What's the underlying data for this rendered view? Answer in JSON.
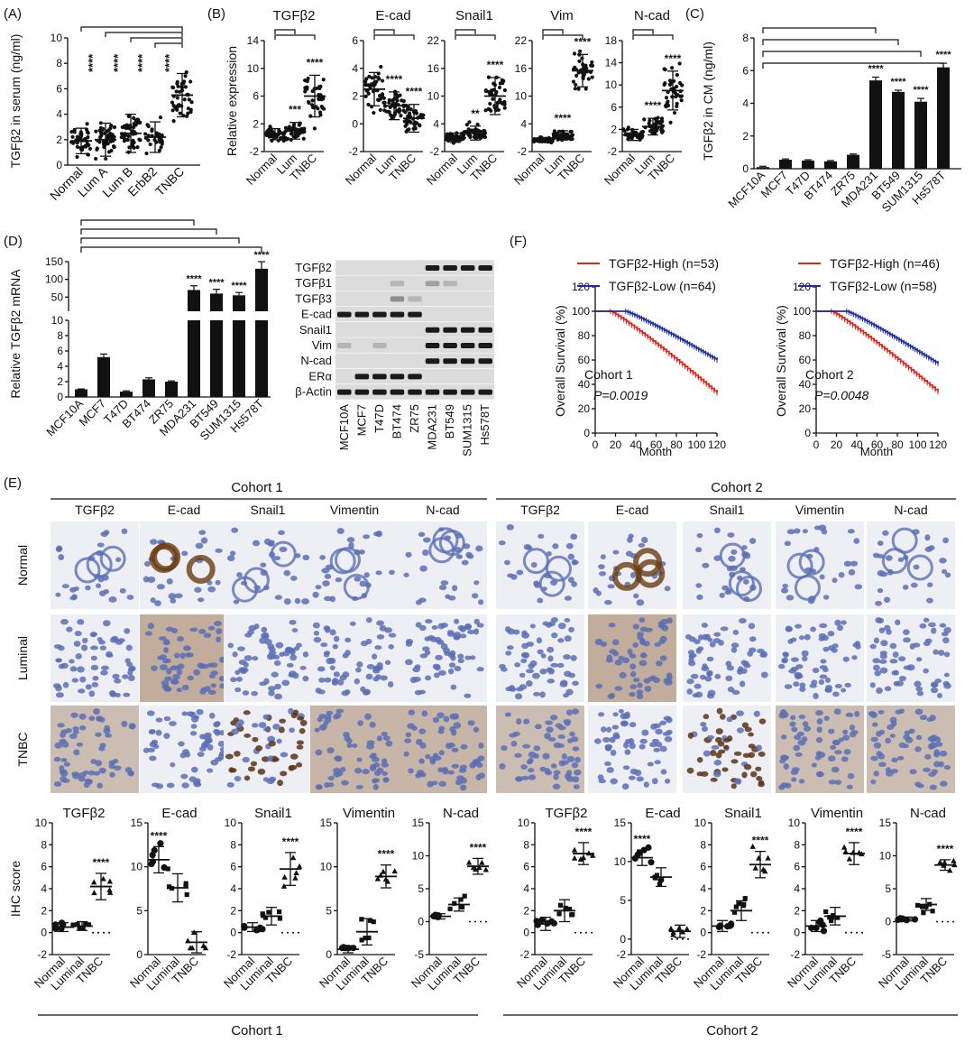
{
  "colors": {
    "axis": "#111111",
    "bar": "#111111",
    "km_high": "#e2231a",
    "km_low": "#1f2d9e",
    "ihc_brown": "#8a5a2b",
    "ihc_blue": "#5b6fb5",
    "ihc_bg": "#eeeef5",
    "blot_bg": "#dcdcdc",
    "blot_band": "#1a1a1a"
  },
  "panels": {
    "A": "(A)",
    "B": "(B)",
    "C": "(C)",
    "D": "(D)",
    "E": "(E)",
    "F": "(F)"
  },
  "common": {
    "sig4": "****",
    "sig3": "***",
    "sig2": "**"
  },
  "chart_data": [
    {
      "id": "A",
      "type": "scatter",
      "ylabel": "TGFβ2 in serum (ng/ml)",
      "ylim": [
        0,
        10
      ],
      "yticks": [
        0,
        2,
        4,
        6,
        8,
        10
      ],
      "categories": [
        "Normal",
        "Lum A",
        "Lum B",
        "ErbB2",
        "TNBC"
      ],
      "mean": [
        1.9,
        2.0,
        2.5,
        2.2,
        5.5
      ],
      "sd": [
        1.0,
        1.3,
        1.5,
        1.2,
        1.7
      ],
      "n": [
        40,
        45,
        50,
        30,
        45
      ],
      "sig": [
        "",
        "****",
        "****",
        "****",
        "****"
      ]
    },
    {
      "id": "B",
      "type": "scatter",
      "ylabel": "Relative expression",
      "categories": [
        "Normal",
        "Lum",
        "TNBC"
      ],
      "subplots": [
        {
          "title": "TGFβ2",
          "ylim": [
            -2,
            14
          ],
          "yticks": [
            -2,
            2,
            6,
            10,
            14
          ],
          "mean": [
            0.5,
            1.0,
            6.0
          ],
          "sd": [
            0.8,
            1.2,
            3.0
          ],
          "sig": [
            "",
            "***",
            "****"
          ]
        },
        {
          "title": "E-cad",
          "ylim": [
            -2,
            6
          ],
          "yticks": [
            -2,
            0,
            2,
            4,
            6
          ],
          "mean": [
            2.5,
            1.3,
            0.4
          ],
          "sd": [
            1.2,
            1.0,
            1.0
          ],
          "sig": [
            "",
            "****",
            "****"
          ]
        },
        {
          "title": "Snail1",
          "ylim": [
            -2,
            22
          ],
          "yticks": [
            -2,
            4,
            10,
            16,
            22
          ],
          "mean": [
            1.0,
            2.0,
            10.0
          ],
          "sd": [
            1.0,
            1.5,
            4.0
          ],
          "sig": [
            "",
            "**",
            "****"
          ]
        },
        {
          "title": "Vim",
          "ylim": [
            -2,
            22
          ],
          "yticks": [
            -2,
            4,
            10,
            16,
            22
          ],
          "mean": [
            0.5,
            1.5,
            15.5
          ],
          "sd": [
            0.5,
            1.0,
            3.5
          ],
          "sig": [
            "",
            "****",
            "****"
          ]
        },
        {
          "title": "N-cad",
          "ylim": [
            -2,
            18
          ],
          "yticks": [
            -2,
            2,
            6,
            10,
            14,
            18
          ],
          "mean": [
            1.0,
            2.5,
            9.0
          ],
          "sd": [
            1.0,
            1.5,
            3.5
          ],
          "sig": [
            "",
            "****",
            "****"
          ]
        }
      ]
    },
    {
      "id": "C",
      "type": "bar",
      "ylabel": "TGFβ2 in CM (ng/ml)",
      "ylim": [
        0,
        8
      ],
      "yticks": [
        0,
        2,
        4,
        6,
        8
      ],
      "categories": [
        "MCF10A",
        "MCF7",
        "T47D",
        "BT474",
        "ZR75",
        "MDA231",
        "BT549",
        "SUM1315",
        "Hs578T"
      ],
      "values": [
        0.1,
        0.55,
        0.5,
        0.45,
        0.85,
        5.4,
        4.7,
        4.1,
        6.2
      ],
      "err": [
        0.05,
        0.05,
        0.05,
        0.05,
        0.05,
        0.2,
        0.1,
        0.2,
        0.25
      ],
      "sig": [
        "",
        "",
        "",
        "",
        "",
        "****",
        "****",
        "****",
        "****"
      ]
    },
    {
      "id": "D",
      "type": "bar",
      "ylabel": "Relative TGFβ2 mRNA",
      "yticks_lower": [
        0,
        2,
        4,
        6,
        8,
        10
      ],
      "yticks_upper": [
        50,
        100,
        150
      ],
      "categories": [
        "MCF10A",
        "MCF7",
        "T47D",
        "BT474",
        "ZR75",
        "MDA231",
        "BT549",
        "SUM1315",
        "Hs578T"
      ],
      "values": [
        1.0,
        5.2,
        0.7,
        2.3,
        2.0,
        70,
        60,
        55,
        130
      ],
      "err": [
        0.05,
        0.4,
        0.1,
        0.2,
        0.1,
        12,
        12,
        8,
        20
      ],
      "sig": [
        "",
        "",
        "",
        "",
        "",
        "****",
        "****",
        "****",
        "****"
      ]
    },
    {
      "id": "F",
      "type": "line",
      "ylabel": "Overall Survival (%)",
      "xlabel": "Month",
      "xticks": [
        0,
        20,
        40,
        60,
        80,
        100,
        120
      ],
      "yticks": [
        0,
        20,
        40,
        60,
        80,
        100,
        120
      ],
      "subplots": [
        {
          "cohort": "Cohort 1",
          "p": "P=0.0019",
          "high_legend": "TGFβ2-High (n=53)",
          "low_legend": "TGFβ2-Low (n=64)",
          "high_end": 33,
          "low_end": 60
        },
        {
          "cohort": "Cohort 2",
          "p": "P=0.0048",
          "high_legend": "TGFβ2-High (n=46)",
          "low_legend": "TGFβ2-Low (n=58)",
          "high_end": 34,
          "low_end": 57
        }
      ]
    },
    {
      "id": "E_scores",
      "type": "scatter",
      "ylabel": "IHC score",
      "categories": [
        "Normal",
        "Luminal",
        "TNBC"
      ],
      "subplots": [
        {
          "title": "TGFβ2",
          "ylim": [
            -2,
            10
          ],
          "yticks": [
            -2,
            0,
            2,
            4,
            6,
            8,
            10
          ],
          "mean": [
            0.5,
            0.6,
            4.2
          ],
          "sd": [
            0.4,
            0.4,
            1.2
          ],
          "sig": [
            "",
            "",
            "****"
          ]
        },
        {
          "title": "E-cad",
          "ylim": [
            0,
            15
          ],
          "yticks": [
            0,
            5,
            10,
            15
          ],
          "mean": [
            10.8,
            7.6,
            1.4
          ],
          "sd": [
            1.5,
            1.6,
            1.2
          ],
          "sig": [
            "****",
            "",
            ""
          ]
        },
        {
          "title": "Snail1",
          "ylim": [
            -2,
            10
          ],
          "yticks": [
            -2,
            0,
            2,
            4,
            6,
            8,
            10
          ],
          "mean": [
            0.5,
            1.5,
            5.8
          ],
          "sd": [
            0.4,
            0.8,
            1.5
          ],
          "sig": [
            "",
            "",
            "****"
          ]
        },
        {
          "title": "Vimentin",
          "ylim": [
            0,
            15
          ],
          "yticks": [
            0,
            5,
            10,
            15
          ],
          "mean": [
            0.6,
            2.6,
            8.9
          ],
          "sd": [
            0.4,
            1.5,
            1.3
          ],
          "sig": [
            "",
            "",
            "****"
          ]
        },
        {
          "title": "N-cad",
          "ylim": [
            -5,
            15
          ],
          "yticks": [
            -5,
            0,
            5,
            10,
            15
          ],
          "mean": [
            0.8,
            2.6,
            8.4
          ],
          "sd": [
            0.4,
            1.0,
            1.2
          ],
          "sig": [
            "",
            "",
            "****"
          ]
        },
        {
          "title": "TGFβ2",
          "ylim": [
            -2,
            10
          ],
          "yticks": [
            -2,
            0,
            2,
            4,
            6,
            8,
            10
          ],
          "mean": [
            0.8,
            2.0,
            7.2
          ],
          "sd": [
            0.6,
            1.0,
            1.0
          ],
          "sig": [
            "",
            "",
            "****"
          ]
        },
        {
          "title": "E-cad",
          "ylim": [
            -2,
            15
          ],
          "yticks": [
            -2,
            0,
            5,
            10,
            15
          ],
          "mean": [
            10.5,
            8.0,
            1.0
          ],
          "sd": [
            1.0,
            1.2,
            0.8
          ],
          "sig": [
            "****",
            "",
            ""
          ]
        },
        {
          "title": "Snail1",
          "ylim": [
            -2,
            10
          ],
          "yticks": [
            -2,
            0,
            2,
            4,
            6,
            8,
            10
          ],
          "mean": [
            0.6,
            2.0,
            6.2
          ],
          "sd": [
            0.5,
            0.9,
            1.2
          ],
          "sig": [
            "",
            "",
            "****"
          ]
        },
        {
          "title": "Vimentin",
          "ylim": [
            -2,
            10
          ],
          "yticks": [
            -2,
            0,
            2,
            4,
            6,
            8,
            10
          ],
          "mean": [
            0.6,
            1.5,
            7.2
          ],
          "sd": [
            0.5,
            0.8,
            1.0
          ],
          "sig": [
            "",
            "",
            "****"
          ]
        },
        {
          "title": "N-cad",
          "ylim": [
            -5,
            15
          ],
          "yticks": [
            -5,
            0,
            5,
            10,
            15
          ],
          "mean": [
            0.4,
            2.6,
            8.6
          ],
          "sd": [
            0.3,
            0.9,
            0.8
          ],
          "sig": [
            "",
            "",
            "****"
          ]
        }
      ]
    }
  ],
  "blot": {
    "rows": [
      "TGFβ2",
      "TGFβ1",
      "TGFβ3",
      "E-cad",
      "Snail1",
      "Vim",
      "N-cad",
      "ERα",
      "β-Actin"
    ],
    "lanes": [
      "MCF10A",
      "MCF7",
      "T47D",
      "BT474",
      "ZR75",
      "MDA231",
      "BT549",
      "SUM1315",
      "Hs578T"
    ],
    "intensity": [
      [
        0,
        0,
        0,
        0,
        0,
        1,
        1,
        1,
        1
      ],
      [
        0,
        0,
        0,
        0.2,
        0,
        0.3,
        0.2,
        0,
        0
      ],
      [
        0,
        0,
        0,
        0.4,
        0.2,
        0,
        0,
        0,
        0
      ],
      [
        1,
        1,
        1,
        1,
        1,
        0,
        0,
        0,
        0
      ],
      [
        0,
        0,
        0,
        0,
        0,
        1,
        1,
        1,
        1
      ],
      [
        0.2,
        0,
        0.2,
        0,
        0,
        1,
        1,
        1,
        1
      ],
      [
        0,
        0,
        0,
        0,
        0,
        1,
        1,
        1,
        1
      ],
      [
        0,
        1,
        1,
        1,
        1,
        0,
        0,
        0,
        0
      ],
      [
        1,
        1,
        1,
        1,
        1,
        1,
        1,
        1,
        1
      ]
    ]
  },
  "ihc": {
    "cohorts": [
      "Cohort 1",
      "Cohort 2"
    ],
    "markers": [
      "TGFβ2",
      "E-cad",
      "Snail1",
      "Vimentin",
      "N-cad"
    ],
    "rows": [
      "Normal",
      "Luminal",
      "TNBC"
    ],
    "stain": [
      [
        0.1,
        0.8,
        0.05,
        0.05,
        0.05,
        0.1,
        0.8,
        0.05,
        0.05,
        0.05
      ],
      [
        0.1,
        0.8,
        0.1,
        0.1,
        0.1,
        0.2,
        0.8,
        0.1,
        0.1,
        0.1
      ],
      [
        0.6,
        0.1,
        0.7,
        0.7,
        0.7,
        0.6,
        0.1,
        0.7,
        0.6,
        0.6
      ]
    ],
    "nuclear": [
      [
        0,
        0,
        0,
        0,
        0,
        0,
        0,
        0,
        0,
        0
      ],
      [
        0,
        0,
        0,
        0,
        0,
        0,
        0,
        0,
        0,
        0
      ],
      [
        0,
        0,
        1,
        0,
        0,
        0,
        0,
        1,
        0,
        0
      ]
    ]
  }
}
